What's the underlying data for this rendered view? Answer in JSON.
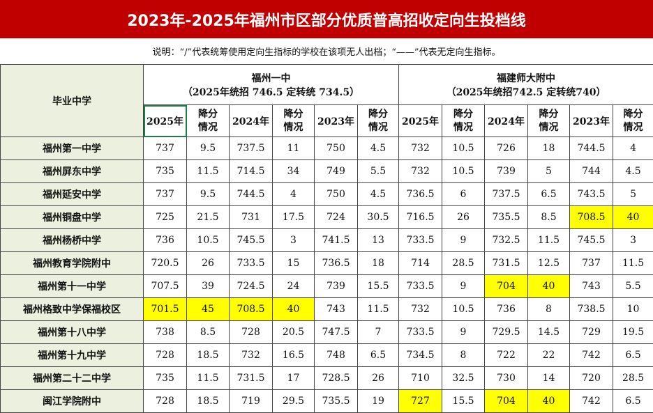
{
  "title": "2023年-2025年福州市区部分优质普高招收定向生投档线",
  "note": "说明：“/”代表统筹使用定向生指标的学校在该项无人出档；“——”代表无定向生指标。",
  "table": {
    "corner": "毕业中学",
    "groups": [
      {
        "name": "福州一中",
        "sub": "（2025年统招 746.5 定转统 734.5）"
      },
      {
        "name": "福建师大附中",
        "sub": "（2025年统招742.5 定转统740）"
      }
    ],
    "columns": [
      "2025年",
      "降分情况",
      "2024年",
      "降分情况",
      "2023年",
      "降分情况",
      "2025年",
      "降分情况",
      "2024年",
      "降分情况",
      "2023年",
      "降分情况"
    ],
    "rows": [
      [
        "福州第一中学",
        "737",
        "9.5",
        "737.5",
        "11",
        "750",
        "4.5",
        "732",
        "10.5",
        "726",
        "18",
        "744.5",
        "4"
      ],
      [
        "福州屏东中学",
        "735",
        "11.5",
        "714.5",
        "34",
        "749",
        "5.5",
        "732",
        "10.5",
        "739",
        "5",
        "744",
        "4.5"
      ],
      [
        "福州延安中学",
        "737",
        "9.5",
        "744.5",
        "4",
        "750",
        "4.5",
        "736.5",
        "6",
        "737.5",
        "6.5",
        "743.5",
        "5"
      ],
      [
        "福州铜盘中学",
        "725",
        "21.5",
        "731",
        "17.5",
        "724",
        "30.5",
        "716.5",
        "26",
        "735.5",
        "8.5",
        "708.5",
        "40"
      ],
      [
        "福州杨桥中学",
        "736",
        "10.5",
        "745.5",
        "3",
        "741.5",
        "13",
        "733.5",
        "9",
        "732.5",
        "11.5",
        "745.5",
        "3"
      ],
      [
        "福州教育学院附中",
        "720.5",
        "26",
        "733.5",
        "15",
        "736.5",
        "18",
        "714",
        "28.5",
        "731.5",
        "12.5",
        "737",
        "11.5"
      ],
      [
        "福州第十一中学",
        "707.5",
        "39",
        "724.5",
        "24",
        "739",
        "15.5",
        "733.5",
        "9",
        "704",
        "40",
        "743",
        "5.5"
      ],
      [
        "福州格致中学保福校区",
        "701.5",
        "45",
        "708.5",
        "40",
        "743",
        "11.5",
        "732",
        "10.5",
        "736",
        "8",
        "738.5",
        "10"
      ],
      [
        "福州第十八中学",
        "738",
        "8.5",
        "728",
        "20.5",
        "747.5",
        "7",
        "733.5",
        "9",
        "729.5",
        "14.5",
        "729",
        "19.5"
      ],
      [
        "福州第十九中学",
        "728",
        "18.5",
        "732",
        "16.5",
        "748",
        "6.5",
        "734.5",
        "8",
        "722",
        "22",
        "742",
        "6.5"
      ],
      [
        "福州第二十二中学",
        "735",
        "11.5",
        "731.5",
        "17",
        "728.5",
        "26",
        "710",
        "32.5",
        "730",
        "14",
        "720",
        "28.5"
      ],
      [
        "闽江学院附中",
        "728",
        "18.5",
        "719",
        "29.5",
        "735.5",
        "19",
        "727",
        "15.5",
        "704",
        "40",
        "742",
        "6.5"
      ]
    ]
  }
}
